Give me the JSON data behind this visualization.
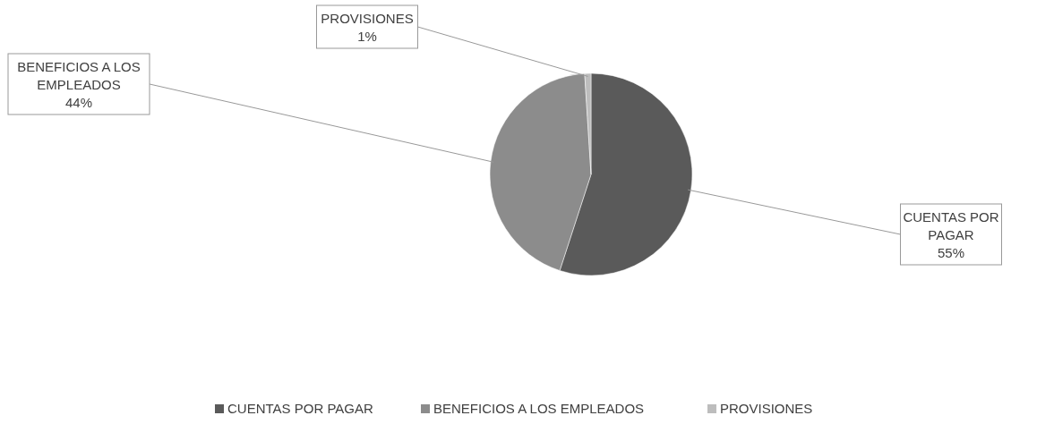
{
  "chart_data": {
    "type": "pie",
    "categories": [
      "CUENTAS POR PAGAR",
      "BENEFICIOS A LOS EMPLEADOS",
      "PROVISIONES"
    ],
    "values": [
      55,
      44,
      1
    ],
    "colors": [
      "#5a5a5a",
      "#8c8c8c",
      "#bdbdbd"
    ],
    "value_labels": [
      "55%",
      "44%",
      "1%"
    ],
    "legend": "bottom"
  }
}
